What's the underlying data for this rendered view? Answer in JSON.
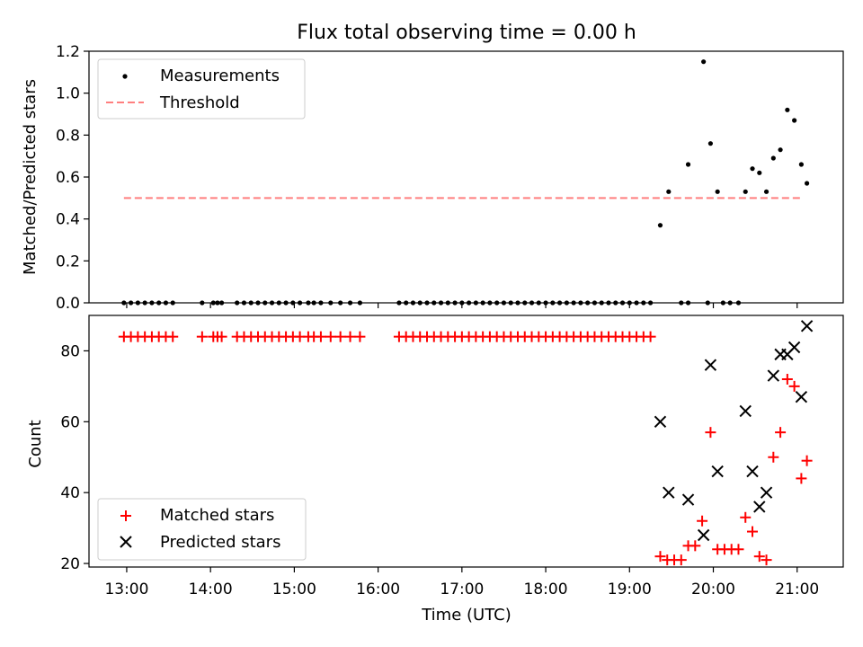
{
  "figure": {
    "title": "Flux total observing time = 0.00 h"
  },
  "chart_data": [
    {
      "type": "scatter",
      "ylabel": "Matched/Predicted stars",
      "xlabel": "",
      "xlim": [
        "12:33",
        "21:33"
      ],
      "ylim": [
        0,
        1.2
      ],
      "yticks": [
        0.0,
        0.2,
        0.4,
        0.6,
        0.8,
        1.0,
        1.2
      ],
      "yticklabels": [
        "0.0",
        "0.2",
        "0.4",
        "0.6",
        "0.8",
        "1.0",
        "1.2"
      ],
      "legend_position": "top-left",
      "series": [
        {
          "name": "Measurements",
          "marker": "dot",
          "color": "#000000",
          "points": [
            [
              "12:58",
              0
            ],
            [
              "13:03",
              0
            ],
            [
              "13:08",
              0
            ],
            [
              "13:13",
              0
            ],
            [
              "13:18",
              0
            ],
            [
              "13:23",
              0
            ],
            [
              "13:28",
              0
            ],
            [
              "13:33",
              0
            ],
            [
              "13:54",
              0
            ],
            [
              "14:02",
              0
            ],
            [
              "14:05",
              0
            ],
            [
              "14:08",
              0
            ],
            [
              "14:19",
              0
            ],
            [
              "14:24",
              0
            ],
            [
              "14:29",
              0
            ],
            [
              "14:34",
              0
            ],
            [
              "14:39",
              0
            ],
            [
              "14:44",
              0
            ],
            [
              "14:49",
              0
            ],
            [
              "14:54",
              0
            ],
            [
              "14:59",
              0
            ],
            [
              "15:04",
              0
            ],
            [
              "15:10",
              0
            ],
            [
              "15:14",
              0
            ],
            [
              "15:19",
              0
            ],
            [
              "15:26",
              0
            ],
            [
              "15:33",
              0
            ],
            [
              "15:40",
              0
            ],
            [
              "15:47",
              0
            ],
            [
              "16:15",
              0
            ],
            [
              "16:20",
              0
            ],
            [
              "16:25",
              0
            ],
            [
              "16:30",
              0
            ],
            [
              "16:35",
              0
            ],
            [
              "16:40",
              0
            ],
            [
              "16:45",
              0
            ],
            [
              "16:50",
              0
            ],
            [
              "16:55",
              0
            ],
            [
              "17:00",
              0
            ],
            [
              "17:05",
              0
            ],
            [
              "17:10",
              0
            ],
            [
              "17:15",
              0
            ],
            [
              "17:20",
              0
            ],
            [
              "17:25",
              0
            ],
            [
              "17:30",
              0
            ],
            [
              "17:35",
              0
            ],
            [
              "17:40",
              0
            ],
            [
              "17:45",
              0
            ],
            [
              "17:50",
              0
            ],
            [
              "17:55",
              0
            ],
            [
              "18:00",
              0
            ],
            [
              "18:05",
              0
            ],
            [
              "18:10",
              0
            ],
            [
              "18:15",
              0
            ],
            [
              "18:20",
              0
            ],
            [
              "18:25",
              0
            ],
            [
              "18:30",
              0
            ],
            [
              "18:35",
              0
            ],
            [
              "18:40",
              0
            ],
            [
              "18:45",
              0
            ],
            [
              "18:50",
              0
            ],
            [
              "18:55",
              0
            ],
            [
              "19:00",
              0
            ],
            [
              "19:05",
              0
            ],
            [
              "19:10",
              0
            ],
            [
              "19:15",
              0
            ],
            [
              "19:20",
              0
            ],
            [
              "19:37",
              0.37
            ],
            [
              "19:42",
              0.53
            ],
            [
              "19:36",
              0
            ],
            [
              "19:37",
              0
            ],
            [
              "19:38",
              0
            ],
            [
              "19:37",
              0.37
            ],
            [
              "19:42",
              0.53
            ],
            [
              "19:56",
              0
            ],
            [
              "19:62",
              0
            ],
            [
              "19:48",
              0
            ],
            [
              "19:53",
              0
            ],
            [
              "19:58",
              0
            ],
            [
              "19:68",
              0
            ],
            [
              "19:82",
              0
            ],
            [
              "20:07",
              0
            ],
            [
              "20:12",
              0
            ],
            [
              "20:18",
              0
            ],
            [
              "19:40",
              0.37
            ]
          ],
          "measured": [
            [
              "19:22",
              0.37
            ],
            [
              "19:28",
              0.53
            ],
            [
              "19:42",
              0.66
            ],
            [
              "19:53",
              1.15
            ],
            [
              "19:58",
              0.76
            ],
            [
              "20:03",
              0.53
            ],
            [
              "20:23",
              0.53
            ],
            [
              "20:28",
              0.64
            ],
            [
              "20:33",
              0.62
            ],
            [
              "20:38",
              0.53
            ],
            [
              "20:43",
              0.69
            ],
            [
              "20:48",
              0.73
            ],
            [
              "20:53",
              0.92
            ],
            [
              "20:58",
              0.87
            ],
            [
              "21:03",
              0.66
            ],
            [
              "21:07",
              0.57
            ]
          ]
        },
        {
          "name": "Threshold",
          "style": "dashed",
          "color": "#ff7f7f",
          "points": [
            [
              "12:58",
              0.5
            ],
            [
              "21:03",
              0.5
            ]
          ]
        }
      ]
    },
    {
      "type": "scatter",
      "ylabel": "Count",
      "xlabel": "Time (UTC)",
      "xlim": [
        "12:33",
        "21:33"
      ],
      "ylim": [
        19,
        90
      ],
      "yticks": [
        20,
        40,
        60,
        80
      ],
      "yticklabels": [
        "20",
        "40",
        "60",
        "80"
      ],
      "xticklabels": [
        "13:00",
        "14:00",
        "15:00",
        "16:00",
        "17:00",
        "18:00",
        "19:00",
        "20:00",
        "21:00"
      ],
      "legend_position": "bottom-left",
      "series": [
        {
          "name": "Matched stars",
          "marker": "plus",
          "color": "#ff0000",
          "points": [
            [
              "12:58",
              84
            ],
            [
              "13:03",
              84
            ],
            [
              "13:08",
              84
            ],
            [
              "13:13",
              84
            ],
            [
              "13:18",
              84
            ],
            [
              "13:23",
              84
            ],
            [
              "13:28",
              84
            ],
            [
              "13:33",
              84
            ],
            [
              "13:54",
              84
            ],
            [
              "14:02",
              84
            ],
            [
              "14:05",
              84
            ],
            [
              "14:08",
              84
            ],
            [
              "14:19",
              84
            ],
            [
              "14:24",
              84
            ],
            [
              "14:29",
              84
            ],
            [
              "14:34",
              84
            ],
            [
              "14:39",
              84
            ],
            [
              "14:44",
              84
            ],
            [
              "14:49",
              84
            ],
            [
              "14:54",
              84
            ],
            [
              "14:59",
              84
            ],
            [
              "15:04",
              84
            ],
            [
              "15:10",
              84
            ],
            [
              "15:14",
              84
            ],
            [
              "15:19",
              84
            ],
            [
              "15:26",
              84
            ],
            [
              "15:33",
              84
            ],
            [
              "15:40",
              84
            ],
            [
              "15:47",
              84
            ],
            [
              "16:15",
              84
            ],
            [
              "16:20",
              84
            ],
            [
              "16:25",
              84
            ],
            [
              "16:30",
              84
            ],
            [
              "16:35",
              84
            ],
            [
              "16:40",
              84
            ],
            [
              "16:45",
              84
            ],
            [
              "16:50",
              84
            ],
            [
              "16:55",
              84
            ],
            [
              "17:00",
              84
            ],
            [
              "17:05",
              84
            ],
            [
              "17:10",
              84
            ],
            [
              "17:15",
              84
            ],
            [
              "17:20",
              84
            ],
            [
              "17:25",
              84
            ],
            [
              "17:30",
              84
            ],
            [
              "17:35",
              84
            ],
            [
              "17:40",
              84
            ],
            [
              "17:45",
              84
            ],
            [
              "17:50",
              84
            ],
            [
              "17:55",
              84
            ],
            [
              "18:00",
              84
            ],
            [
              "18:05",
              84
            ],
            [
              "18:10",
              84
            ],
            [
              "18:15",
              84
            ],
            [
              "18:20",
              84
            ],
            [
              "18:25",
              84
            ],
            [
              "18:30",
              84
            ],
            [
              "18:35",
              84
            ],
            [
              "18:40",
              84
            ],
            [
              "18:45",
              84
            ],
            [
              "18:50",
              84
            ],
            [
              "18:55",
              84
            ],
            [
              "19:00",
              84
            ],
            [
              "19:05",
              84
            ],
            [
              "19:10",
              84
            ],
            [
              "19:15",
              84
            ],
            [
              "19:22",
              22
            ],
            [
              "19:27",
              21
            ],
            [
              "19:32",
              21
            ],
            [
              "19:37",
              21
            ],
            [
              "19:42",
              25
            ],
            [
              "19:47",
              25
            ],
            [
              "19:52",
              32
            ],
            [
              "19:58",
              57
            ],
            [
              "20:03",
              24
            ],
            [
              "20:08",
              24
            ],
            [
              "20:13",
              24
            ],
            [
              "20:18",
              24
            ],
            [
              "20:23",
              33
            ],
            [
              "20:28",
              29
            ],
            [
              "20:33",
              22
            ],
            [
              "20:38",
              21
            ],
            [
              "20:43",
              50
            ],
            [
              "20:48",
              57
            ],
            [
              "20:53",
              72
            ],
            [
              "20:58",
              70
            ],
            [
              "21:03",
              44
            ],
            [
              "21:07",
              49
            ]
          ]
        },
        {
          "name": "Predicted stars",
          "marker": "x",
          "color": "#000000",
          "points": [
            [
              "19:22",
              60
            ],
            [
              "19:28",
              40
            ],
            [
              "19:42",
              38
            ],
            [
              "19:53",
              28
            ],
            [
              "19:58",
              76
            ],
            [
              "20:03",
              46
            ],
            [
              "20:23",
              63
            ],
            [
              "20:28",
              46
            ],
            [
              "20:33",
              36
            ],
            [
              "20:38",
              40
            ],
            [
              "20:43",
              73
            ],
            [
              "20:48",
              79
            ],
            [
              "20:53",
              79
            ],
            [
              "20:58",
              81
            ],
            [
              "21:03",
              67
            ],
            [
              "21:07",
              87
            ]
          ]
        }
      ]
    }
  ]
}
